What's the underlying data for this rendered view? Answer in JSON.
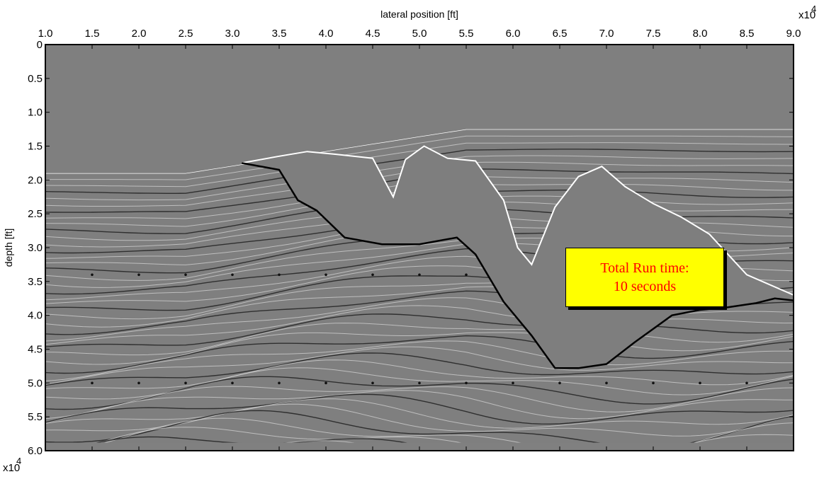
{
  "chart_data": {
    "type": "image",
    "title": "",
    "xlabel": "lateral position [ft]",
    "ylabel": "depth [ft]",
    "x_axis_position": "top",
    "y_axis_direction": "down",
    "x_multiplier": "x10",
    "x_multiplier_exp": "4",
    "y_multiplier": "x10",
    "y_multiplier_exp": "4",
    "xlim": [
      1.0,
      9.0
    ],
    "ylim": [
      0,
      6.0
    ],
    "xticks": [
      1.0,
      1.5,
      2.0,
      2.5,
      3.0,
      3.5,
      4.0,
      4.5,
      5.0,
      5.5,
      6.0,
      6.5,
      7.0,
      7.5,
      8.0,
      8.5,
      9.0
    ],
    "xtick_labels": [
      "1.0",
      "1.5",
      "2.0",
      "2.5",
      "3.0",
      "3.5",
      "4.0",
      "4.5",
      "5.0",
      "5.5",
      "6.0",
      "6.5",
      "7.0",
      "7.5",
      "8.0",
      "8.5",
      "9.0"
    ],
    "yticks": [
      0,
      0.5,
      1.0,
      1.5,
      2.0,
      2.5,
      3.0,
      3.5,
      4.0,
      4.5,
      5.0,
      5.5,
      6.0
    ],
    "ytick_labels": [
      "0",
      "0.5",
      "1.0",
      "1.5",
      "2.0",
      "2.5",
      "3.0",
      "3.5",
      "4.0",
      "4.5",
      "5.0",
      "5.5",
      "6.0"
    ],
    "colormap": "grayscale",
    "water_bottom_depth_left": 1.9,
    "water_bottom_depth_right": 1.25,
    "salt_top": {
      "x": [
        3.1,
        3.5,
        3.8,
        4.1,
        4.5,
        4.72,
        4.85,
        5.05,
        5.3,
        5.6,
        5.9,
        6.05,
        6.2,
        6.45,
        6.7,
        6.95,
        7.2,
        7.5,
        7.8,
        8.1,
        8.5,
        9.0
      ],
      "y": [
        1.75,
        1.65,
        1.58,
        1.62,
        1.68,
        2.25,
        1.7,
        1.5,
        1.68,
        1.72,
        2.3,
        3.0,
        3.25,
        2.4,
        1.95,
        1.8,
        2.1,
        2.35,
        2.55,
        2.8,
        3.4,
        3.7
      ]
    },
    "salt_base": {
      "x": [
        3.1,
        3.5,
        3.7,
        3.9,
        4.2,
        4.6,
        5.0,
        5.4,
        5.6,
        5.9,
        6.2,
        6.45,
        6.7,
        7.0,
        7.3,
        7.7,
        8.0,
        8.3,
        8.6,
        8.8,
        9.0
      ],
      "y": [
        1.75,
        1.85,
        2.3,
        2.45,
        2.85,
        2.95,
        2.95,
        2.85,
        3.1,
        3.8,
        4.3,
        4.78,
        4.78,
        4.72,
        4.4,
        4.0,
        3.92,
        3.88,
        3.82,
        3.75,
        3.78
      ]
    },
    "point_markers": {
      "x": [
        1.5,
        2.0,
        2.5,
        3.0,
        3.5,
        4.0,
        4.5,
        5.0,
        5.5,
        6.0,
        6.5,
        7.0,
        7.5,
        8.0,
        8.5
      ],
      "rows": [
        {
          "depth": 3.4,
          "columns": [
            1.5,
            2.0,
            2.5,
            3.0,
            3.5,
            4.0,
            4.5,
            5.0,
            5.5
          ]
        },
        {
          "depth": 5.0,
          "columns": [
            1.5,
            2.0,
            2.5,
            3.0,
            3.5,
            4.0,
            4.5,
            5.0,
            5.5,
            6.0,
            6.5,
            7.0,
            7.5,
            8.0,
            8.5
          ]
        }
      ]
    },
    "annotation": {
      "lines": [
        "Total Run time:",
        "10 seconds"
      ],
      "background": "#ffff00",
      "text_color": "#ff0000"
    },
    "grid": false,
    "legend": "none"
  }
}
